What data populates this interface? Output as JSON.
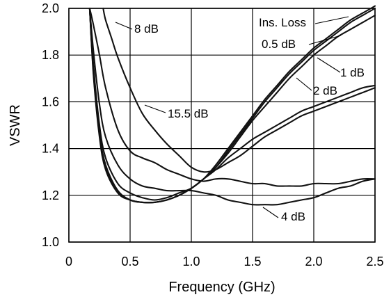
{
  "chart_data": {
    "type": "line",
    "title": "",
    "xlabel": "Frequency (GHz)",
    "ylabel": "VSWR",
    "xlim": [
      0,
      2.5
    ],
    "ylim": [
      1.0,
      2.0
    ],
    "grid": true,
    "legend": "none",
    "x_ticks": [
      "0",
      "0.5",
      "1.0",
      "1.5",
      "2.0",
      "2.5"
    ],
    "y_ticks": [
      "1.0",
      "1.2",
      "1.4",
      "1.6",
      "1.8",
      "2.0"
    ],
    "series": [
      {
        "name": "Ins. Loss",
        "x": [
          0.17,
          0.2,
          0.25,
          0.3,
          0.4,
          0.5,
          0.6,
          0.7,
          0.8,
          0.9,
          1.0,
          1.1,
          1.2,
          1.3,
          1.4,
          1.5,
          1.6,
          1.7,
          1.8,
          1.9,
          2.0,
          2.1,
          2.2,
          2.3,
          2.4,
          2.5
        ],
        "y": [
          2.0,
          1.72,
          1.45,
          1.31,
          1.21,
          1.18,
          1.17,
          1.17,
          1.18,
          1.2,
          1.23,
          1.27,
          1.33,
          1.4,
          1.47,
          1.54,
          1.61,
          1.67,
          1.73,
          1.78,
          1.83,
          1.87,
          1.91,
          1.95,
          1.98,
          2.01
        ]
      },
      {
        "name": "0.5 dB",
        "x": [
          0.17,
          0.2,
          0.25,
          0.3,
          0.4,
          0.5,
          0.6,
          0.7,
          0.8,
          0.9,
          1.0,
          1.1,
          1.2,
          1.3,
          1.4,
          1.5,
          1.6,
          1.7,
          1.8,
          1.9,
          2.0,
          2.1,
          2.2,
          2.3,
          2.4,
          2.5
        ],
        "y": [
          2.0,
          1.73,
          1.46,
          1.32,
          1.22,
          1.18,
          1.17,
          1.17,
          1.18,
          1.2,
          1.23,
          1.27,
          1.32,
          1.39,
          1.46,
          1.53,
          1.6,
          1.66,
          1.72,
          1.77,
          1.82,
          1.86,
          1.9,
          1.94,
          1.97,
          2.0
        ]
      },
      {
        "name": "1 dB",
        "x": [
          0.17,
          0.2,
          0.25,
          0.3,
          0.4,
          0.5,
          0.6,
          0.7,
          0.8,
          0.9,
          1.0,
          1.1,
          1.2,
          1.3,
          1.4,
          1.5,
          1.6,
          1.7,
          1.8,
          1.9,
          2.0,
          2.1,
          2.2,
          2.3,
          2.4,
          2.5
        ],
        "y": [
          2.0,
          1.74,
          1.47,
          1.33,
          1.22,
          1.18,
          1.17,
          1.17,
          1.18,
          1.2,
          1.23,
          1.27,
          1.32,
          1.38,
          1.45,
          1.52,
          1.58,
          1.64,
          1.7,
          1.75,
          1.8,
          1.84,
          1.88,
          1.91,
          1.94,
          1.97
        ]
      },
      {
        "name": "2 dB",
        "x": [
          0.17,
          0.2,
          0.25,
          0.3,
          0.4,
          0.5,
          0.6,
          0.7,
          0.8,
          0.9,
          1.0,
          1.1,
          1.2,
          1.3,
          1.4,
          1.5,
          1.6,
          1.7,
          1.8,
          1.9,
          2.0,
          2.1,
          2.2,
          2.3,
          2.4,
          2.5
        ],
        "y": [
          2.0,
          1.76,
          1.5,
          1.36,
          1.25,
          1.21,
          1.19,
          1.18,
          1.19,
          1.21,
          1.23,
          1.27,
          1.31,
          1.36,
          1.4,
          1.44,
          1.47,
          1.5,
          1.53,
          1.56,
          1.58,
          1.6,
          1.62,
          1.64,
          1.66,
          1.67
        ]
      },
      {
        "name": "4 dB",
        "x": [
          0.17,
          0.2,
          0.25,
          0.3,
          0.4,
          0.5,
          0.6,
          0.7,
          0.8,
          0.9,
          1.0,
          1.1,
          1.2,
          1.3,
          1.4,
          1.5,
          1.6,
          1.7,
          1.8,
          1.9,
          2.0,
          2.1,
          2.2,
          2.3,
          2.4,
          2.5
        ],
        "y": [
          2.0,
          1.82,
          1.59,
          1.45,
          1.33,
          1.27,
          1.24,
          1.23,
          1.22,
          1.22,
          1.22,
          1.21,
          1.2,
          1.18,
          1.17,
          1.16,
          1.16,
          1.16,
          1.17,
          1.18,
          1.19,
          1.21,
          1.23,
          1.24,
          1.26,
          1.27
        ]
      },
      {
        "name": "15.5 dB",
        "x": [
          0.17,
          0.2,
          0.25,
          0.3,
          0.4,
          0.5,
          0.6,
          0.7,
          0.8,
          0.9,
          1.0,
          1.1,
          1.2,
          1.3,
          1.4,
          1.5,
          1.6,
          1.7,
          1.8,
          1.9,
          2.0,
          2.1,
          2.2,
          2.3,
          2.4,
          2.5
        ],
        "y": [
          2.0,
          1.93,
          1.8,
          1.66,
          1.48,
          1.39,
          1.36,
          1.34,
          1.31,
          1.29,
          1.27,
          1.26,
          1.27,
          1.27,
          1.26,
          1.25,
          1.25,
          1.24,
          1.24,
          1.24,
          1.25,
          1.25,
          1.25,
          1.26,
          1.27,
          1.27
        ]
      },
      {
        "name": "8 dB",
        "x": [
          0.28,
          0.3,
          0.35,
          0.4,
          0.5,
          0.6,
          0.7,
          0.8,
          0.9,
          1.0,
          1.1,
          1.2,
          1.3,
          1.4,
          1.5,
          1.6,
          1.7,
          1.8,
          1.9,
          2.0,
          2.1,
          2.2,
          2.3,
          2.4,
          2.5
        ],
        "y": [
          2.0,
          1.95,
          1.87,
          1.79,
          1.66,
          1.55,
          1.48,
          1.42,
          1.37,
          1.32,
          1.3,
          1.31,
          1.34,
          1.37,
          1.41,
          1.45,
          1.48,
          1.51,
          1.54,
          1.56,
          1.58,
          1.6,
          1.62,
          1.64,
          1.66
        ]
      }
    ],
    "annotations": [
      {
        "text": "Ins. Loss",
        "series": "Ins. Loss"
      },
      {
        "text": "0.5 dB",
        "series": "0.5 dB"
      },
      {
        "text": "1 dB",
        "series": "1 dB"
      },
      {
        "text": "2 dB",
        "series": "2 dB"
      },
      {
        "text": "4 dB",
        "series": "4 dB"
      },
      {
        "text": "15.5 dB",
        "series": "15.5 dB"
      },
      {
        "text": "8 dB",
        "series": "8 dB"
      }
    ]
  }
}
